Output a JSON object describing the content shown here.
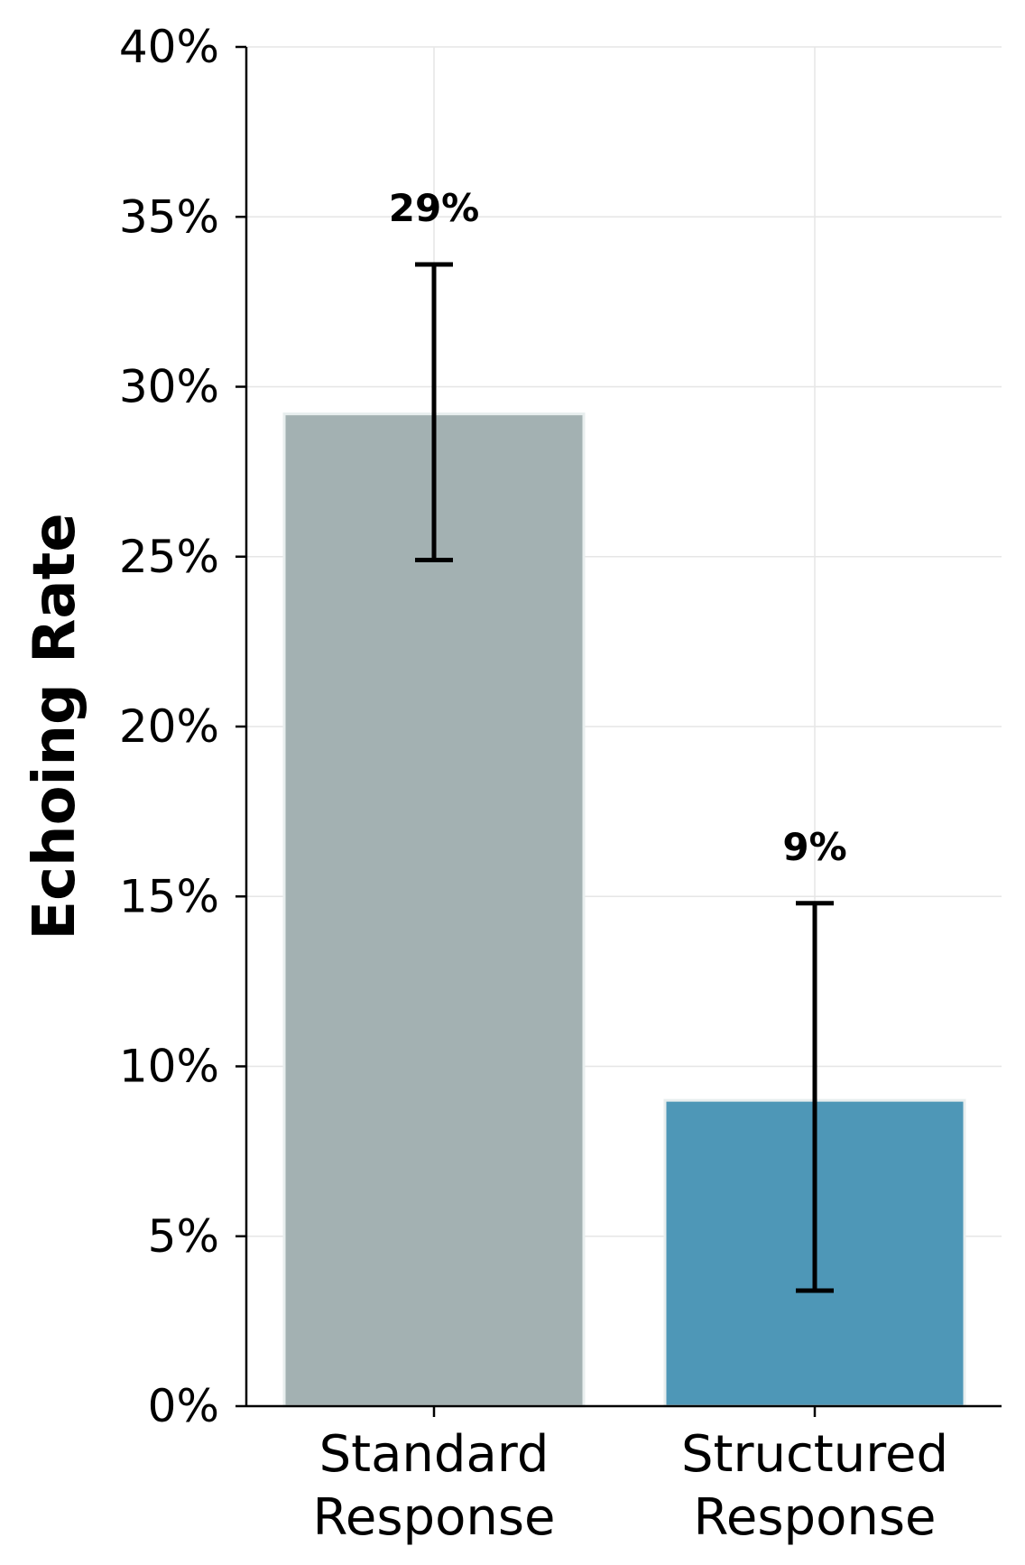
{
  "chart_data": {
    "type": "bar",
    "ylabel": "Echoing Rate",
    "ylim": [
      0,
      40
    ],
    "yticks": [
      0,
      5,
      10,
      15,
      20,
      25,
      30,
      35,
      40
    ],
    "ytick_labels": [
      "0%",
      "5%",
      "10%",
      "15%",
      "20%",
      "25%",
      "30%",
      "35%",
      "40%"
    ],
    "grid": true,
    "categories": [
      {
        "line1": "Standard",
        "line2": "Response"
      },
      {
        "line1": "Structured",
        "line2": "Response"
      }
    ],
    "values": [
      29.2,
      9.0
    ],
    "error_low": [
      24.9,
      3.4
    ],
    "error_high": [
      33.6,
      14.8
    ],
    "data_labels": [
      "29%",
      "9%"
    ],
    "colors": [
      "#a3b1b2",
      "#4e97b7"
    ]
  }
}
